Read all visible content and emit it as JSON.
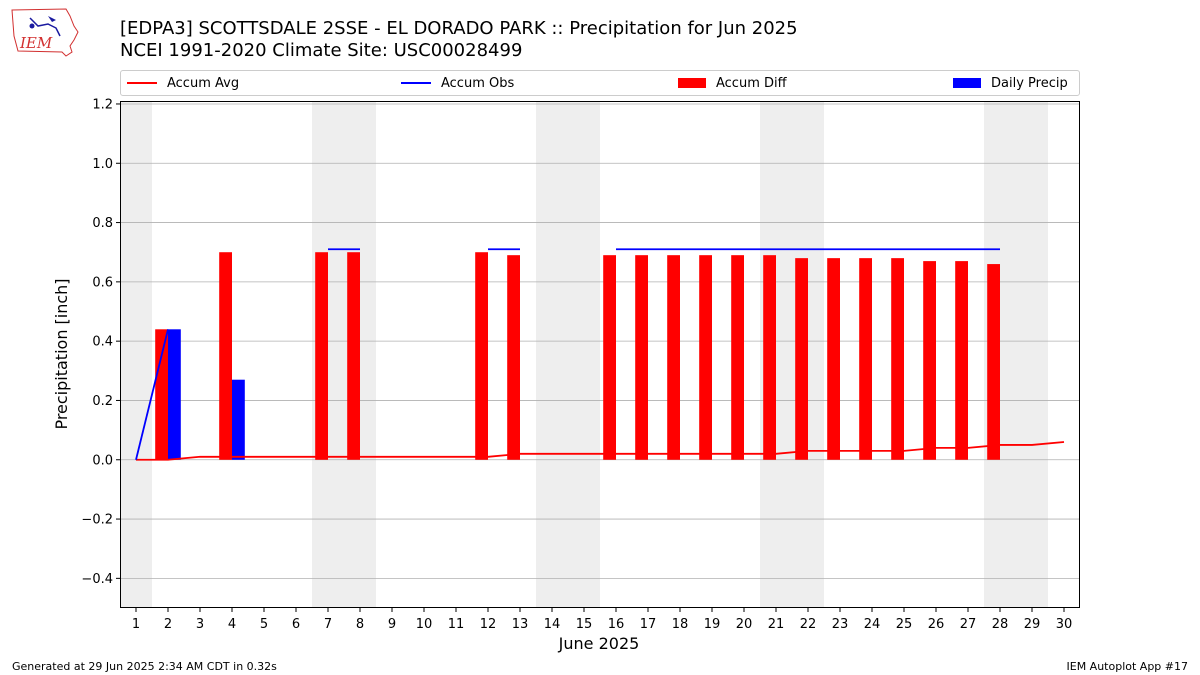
{
  "header": {
    "title_line1": "[EDPA3] SCOTTSDALE 2SSE - EL DORADO PARK :: Precipitation for Jun 2025",
    "title_line2": "NCEI 1991-2020 Climate Site: USC00028499",
    "logo_text": "IEM"
  },
  "footer": {
    "left": "Generated at 29 Jun 2025 2:34 AM CDT in 0.32s",
    "right": "IEM Autoplot App #17"
  },
  "chart_data": {
    "type": "bar",
    "title": "[EDPA3] SCOTTSDALE 2SSE - EL DORADO PARK :: Precipitation for Jun 2025",
    "xlabel": "June 2025",
    "ylabel": "Precipitation [inch]",
    "ylim": [
      -0.5,
      1.21
    ],
    "xlim": [
      0.5,
      30.5
    ],
    "yticks": [
      -0.4,
      -0.2,
      0.0,
      0.2,
      0.4,
      0.6,
      0.8,
      1.0,
      1.2
    ],
    "ytick_labels": [
      "−0.4",
      "−0.2",
      "0.0",
      "0.2",
      "0.4",
      "0.6",
      "0.8",
      "1.0",
      "1.2"
    ],
    "days": [
      1,
      2,
      3,
      4,
      5,
      6,
      7,
      8,
      9,
      10,
      11,
      12,
      13,
      14,
      15,
      16,
      17,
      18,
      19,
      20,
      21,
      22,
      23,
      24,
      25,
      26,
      27,
      28,
      29,
      30
    ],
    "grid": true,
    "legend_position": "top",
    "weekend_bands": [
      [
        0.5,
        1.5
      ],
      [
        6.5,
        8.5
      ],
      [
        13.5,
        15.5
      ],
      [
        20.5,
        22.5
      ],
      [
        27.5,
        29.5
      ]
    ],
    "colors": {
      "avg": "#ff0000",
      "obs": "#0000ff",
      "diff": "#ff0000",
      "daily": "#0000ff",
      "band": "#eeeeee",
      "grid": "#b0b0b0"
    },
    "series": [
      {
        "name": "Accum Avg",
        "kind": "line",
        "x": [
          1,
          2,
          3,
          4,
          5,
          6,
          7,
          8,
          9,
          10,
          11,
          12,
          13,
          14,
          15,
          16,
          17,
          18,
          19,
          20,
          21,
          22,
          23,
          24,
          25,
          26,
          27,
          28,
          29,
          30
        ],
        "values": [
          0.0,
          0.0,
          0.01,
          0.01,
          0.01,
          0.01,
          0.01,
          0.01,
          0.01,
          0.01,
          0.01,
          0.01,
          0.02,
          0.02,
          0.02,
          0.02,
          0.02,
          0.02,
          0.02,
          0.02,
          0.02,
          0.03,
          0.03,
          0.03,
          0.03,
          0.04,
          0.04,
          0.05,
          0.05,
          0.06
        ]
      },
      {
        "name": "Accum Obs",
        "kind": "line-segments",
        "segments": [
          {
            "x": [
              1,
              2
            ],
            "values": [
              0.0,
              0.44
            ]
          },
          {
            "x": [
              7,
              8
            ],
            "values": [
              0.71,
              0.71
            ]
          },
          {
            "x": [
              12,
              13
            ],
            "values": [
              0.71,
              0.71
            ]
          },
          {
            "x": [
              16,
              28
            ],
            "values": [
              0.71,
              0.71
            ]
          }
        ]
      },
      {
        "name": "Accum Diff",
        "kind": "bar",
        "x": [
          2,
          4,
          7,
          8,
          12,
          13,
          16,
          17,
          18,
          19,
          20,
          21,
          22,
          23,
          24,
          25,
          26,
          27,
          28
        ],
        "values": [
          0.44,
          0.7,
          0.7,
          0.7,
          0.7,
          0.69,
          0.69,
          0.69,
          0.69,
          0.69,
          0.69,
          0.69,
          0.68,
          0.68,
          0.68,
          0.68,
          0.67,
          0.67,
          0.66
        ]
      },
      {
        "name": "Daily Precip",
        "kind": "bar",
        "x": [
          2,
          4
        ],
        "values": [
          0.44,
          0.27
        ]
      }
    ]
  }
}
